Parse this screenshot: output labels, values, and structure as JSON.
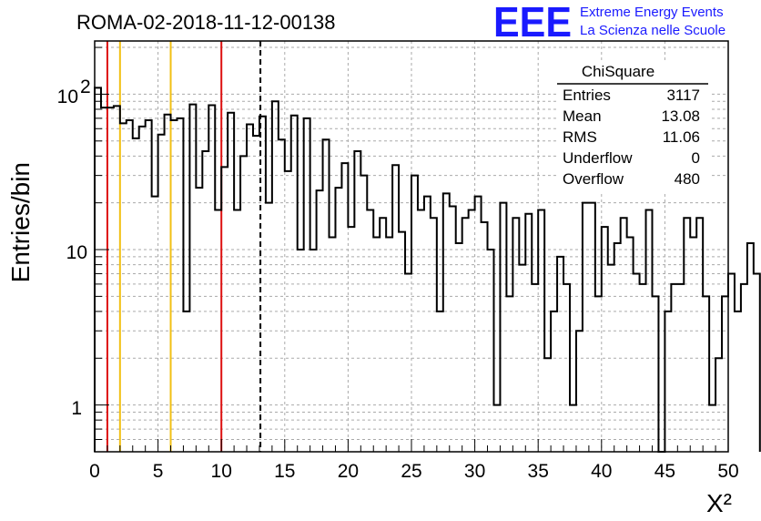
{
  "title": "ROMA-02-2018-11-12-00138",
  "logo": {
    "mark": "EEE",
    "line1": "Extreme Energy Events",
    "line2": "La Scienza nelle Scuole",
    "color": "#1a1aff"
  },
  "stats": {
    "title": "ChiSquare",
    "rows": [
      {
        "label": "Entries",
        "value": "3117"
      },
      {
        "label": "Mean",
        "value": "13.08"
      },
      {
        "label": "RMS",
        "value": "11.06"
      },
      {
        "label": "Underflow",
        "value": "0"
      },
      {
        "label": "Overflow",
        "value": "480"
      }
    ]
  },
  "chart_data": {
    "type": "bar",
    "histogram": true,
    "xlabel": "X²",
    "ylabel": "Entries/bin",
    "xlim": [
      0,
      50
    ],
    "ylim": [
      0.5,
      220
    ],
    "yscale": "log",
    "grid": true,
    "bin_width": 0.5,
    "x_ticks": [
      0,
      5,
      10,
      15,
      20,
      25,
      30,
      35,
      40,
      45,
      50
    ],
    "x_tick_labels": [
      "0",
      "5",
      "10",
      "15",
      "20",
      "25",
      "30",
      "35",
      "40",
      "45",
      "50"
    ],
    "y_ticks": [
      1,
      10,
      100
    ],
    "y_tick_labels": [
      "1",
      "10",
      "10",
      "2"
    ],
    "y_tick_text": {
      "one": "1",
      "ten": "10",
      "hundred_base": "10",
      "hundred_exp": "2"
    },
    "values": [
      110,
      82,
      82,
      84,
      65,
      68,
      52,
      62,
      68,
      22,
      55,
      74,
      68,
      70,
      4,
      86,
      25,
      43,
      85,
      18,
      34,
      76,
      18,
      40,
      64,
      54,
      72,
      20,
      90,
      51,
      32,
      73,
      10,
      70,
      10,
      24,
      51,
      12,
      25,
      36,
      14,
      43,
      30,
      18,
      12,
      16,
      12,
      35,
      13,
      7,
      30,
      18,
      22,
      16,
      4,
      23,
      19,
      11,
      16,
      18,
      22,
      15,
      10,
      1,
      20,
      5,
      16,
      8,
      17,
      6,
      18,
      2,
      4,
      9,
      6,
      1,
      3,
      20,
      20,
      5,
      14,
      8,
      11,
      16,
      12,
      7,
      6,
      18,
      5,
      0.5,
      4,
      6,
      6,
      16,
      12,
      16,
      5,
      1,
      2,
      5,
      7,
      4,
      6,
      11,
      7
    ],
    "vertical_lines": [
      {
        "x": 1,
        "color": "#dd1111",
        "style": "solid"
      },
      {
        "x": 2,
        "color": "#f2c014",
        "style": "solid"
      },
      {
        "x": 6,
        "color": "#f2c014",
        "style": "solid"
      },
      {
        "x": 10,
        "color": "#dd1111",
        "style": "solid"
      },
      {
        "x": 13.08,
        "color": "#000000",
        "style": "dashed"
      }
    ]
  }
}
